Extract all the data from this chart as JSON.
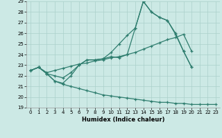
{
  "xlabel": "Humidex (Indice chaleur)",
  "bg_color": "#cce9e5",
  "line_color": "#2e7d6e",
  "grid_color": "#aad0ca",
  "xlim": [
    -0.5,
    23.5
  ],
  "ylim": [
    19,
    29
  ],
  "xticks": [
    0,
    1,
    2,
    3,
    4,
    5,
    6,
    7,
    8,
    9,
    10,
    11,
    12,
    13,
    14,
    15,
    16,
    17,
    18,
    19,
    20,
    21,
    22,
    23
  ],
  "yticks": [
    19,
    20,
    21,
    22,
    23,
    24,
    25,
    26,
    27,
    28,
    29
  ],
  "series1_x": [
    0,
    1,
    2,
    3,
    4,
    5,
    6,
    7,
    8,
    9,
    10,
    11,
    12,
    13,
    14,
    15,
    16,
    17,
    18,
    19,
    20
  ],
  "series1_y": [
    22.5,
    22.8,
    22.2,
    21.5,
    21.3,
    22.0,
    23.0,
    23.5,
    23.5,
    23.6,
    23.8,
    23.7,
    24.0,
    26.5,
    29.0,
    28.0,
    27.5,
    27.2,
    25.9,
    24.3,
    22.8
  ],
  "series2_x": [
    0,
    1,
    2,
    3,
    4,
    5,
    6,
    7,
    8,
    9,
    10,
    11,
    12,
    13,
    14,
    15,
    16,
    17,
    18,
    19,
    20
  ],
  "series2_y": [
    22.5,
    22.8,
    22.3,
    22.5,
    22.7,
    22.9,
    23.1,
    23.2,
    23.4,
    23.5,
    23.7,
    23.8,
    24.0,
    24.2,
    24.5,
    24.8,
    25.1,
    25.4,
    25.6,
    25.9,
    24.3
  ],
  "series3_x": [
    0,
    1,
    2,
    3,
    4,
    5,
    6,
    7,
    8,
    9,
    10,
    11,
    12,
    13,
    14,
    15,
    16,
    17,
    18,
    19,
    20,
    21,
    22,
    23
  ],
  "series3_y": [
    22.5,
    22.8,
    22.2,
    21.5,
    21.2,
    21.0,
    20.8,
    20.6,
    20.4,
    20.2,
    20.1,
    20.0,
    19.9,
    19.8,
    19.7,
    19.6,
    19.5,
    19.5,
    19.4,
    19.4,
    19.3,
    19.3,
    19.3,
    19.3
  ],
  "series4_x": [
    0,
    1,
    2,
    3,
    4,
    5,
    6,
    7,
    8,
    9,
    10,
    11,
    12,
    13,
    14,
    15,
    16,
    17,
    18,
    19,
    20
  ],
  "series4_y": [
    22.5,
    22.8,
    22.2,
    22.0,
    21.8,
    22.3,
    23.0,
    23.5,
    23.5,
    23.6,
    24.2,
    25.0,
    25.8,
    26.5,
    29.0,
    28.0,
    27.5,
    27.2,
    26.0,
    24.3,
    22.8
  ]
}
